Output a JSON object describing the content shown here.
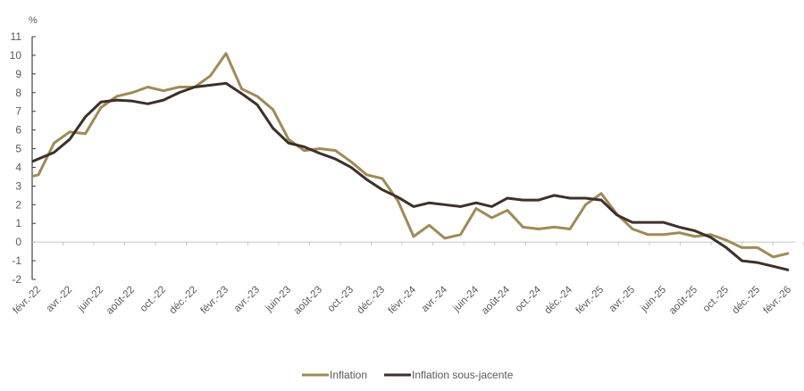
{
  "chart_data": {
    "type": "line",
    "title": "",
    "ylabel": "%",
    "xlabel": "",
    "ylim": [
      -2,
      11
    ],
    "yticks": [
      -2,
      -1,
      0,
      1,
      2,
      3,
      4,
      5,
      6,
      7,
      8,
      9,
      10,
      11
    ],
    "grid": false,
    "legend": "bottom",
    "x": [
      "2022-01",
      "2022-02",
      "2022-03",
      "2022-04",
      "2022-05",
      "2022-06",
      "2022-07",
      "2022-08",
      "2022-09",
      "2022-10",
      "2022-11",
      "2022-12",
      "2023-01",
      "2023-02",
      "2023-03",
      "2023-04",
      "2023-05",
      "2023-06",
      "2023-07",
      "2023-08",
      "2023-09",
      "2023-10",
      "2023-11",
      "2023-12",
      "2024-01",
      "2024-02",
      "2024-03",
      "2024-04",
      "2024-05",
      "2024-06",
      "2024-07",
      "2024-08",
      "2024-09",
      "2024-10",
      "2024-11",
      "2024-12",
      "2025-01",
      "2025-02",
      "2025-03",
      "2025-04",
      "2025-05",
      "2025-06",
      "2025-07",
      "2025-08",
      "2025-09",
      "2025-10",
      "2025-11",
      "2025-12",
      "2026-01",
      "2026-02"
    ],
    "xtick_labels": [
      "févr.-22",
      "avr.-22",
      "juin-22",
      "août-22",
      "oct.-22",
      "déc.-22",
      "févr.-23",
      "avr.-23",
      "juin-23",
      "août-23",
      "oct.-23",
      "déc.-23",
      "févr.-24",
      "avr.-24",
      "juin-24",
      "août-24",
      "oct.-24",
      "déc.-24",
      "févr.-25",
      "avr.-25",
      "juin-25",
      "août-25",
      "oct.-25",
      "déc.-25",
      "févr.-26"
    ],
    "series": [
      {
        "name": "Inflation",
        "color": "#a08a56",
        "values": [
          3.4,
          3.6,
          5.3,
          5.9,
          5.8,
          7.2,
          7.8,
          8.0,
          8.3,
          8.1,
          8.3,
          8.3,
          8.9,
          10.1,
          8.2,
          7.8,
          7.1,
          5.5,
          4.9,
          5.0,
          4.9,
          4.3,
          3.6,
          3.4,
          2.2,
          0.3,
          0.9,
          0.2,
          0.4,
          1.8,
          1.3,
          1.7,
          0.8,
          0.7,
          0.8,
          0.7,
          2.0,
          2.6,
          1.5,
          0.7,
          0.4,
          0.4,
          0.5,
          0.3,
          0.4,
          0.1,
          -0.3,
          -0.3,
          -0.8,
          -0.6
        ]
      },
      {
        "name": "Inflation sous-jacente",
        "color": "#3e302a",
        "values": [
          4.1,
          4.45,
          4.8,
          5.5,
          6.7,
          7.5,
          7.6,
          7.55,
          7.4,
          7.6,
          8.0,
          8.3,
          8.4,
          8.5,
          7.95,
          7.35,
          6.1,
          5.3,
          5.1,
          4.75,
          4.45,
          4.0,
          3.35,
          2.8,
          2.4,
          1.9,
          2.1,
          2.0,
          1.9,
          2.1,
          1.9,
          2.35,
          2.25,
          2.25,
          2.5,
          2.35,
          2.35,
          2.25,
          1.45,
          1.05,
          1.05,
          1.05,
          0.8,
          0.6,
          0.25,
          -0.3,
          -1.0,
          -1.1,
          -1.3,
          -1.5
        ]
      }
    ]
  }
}
